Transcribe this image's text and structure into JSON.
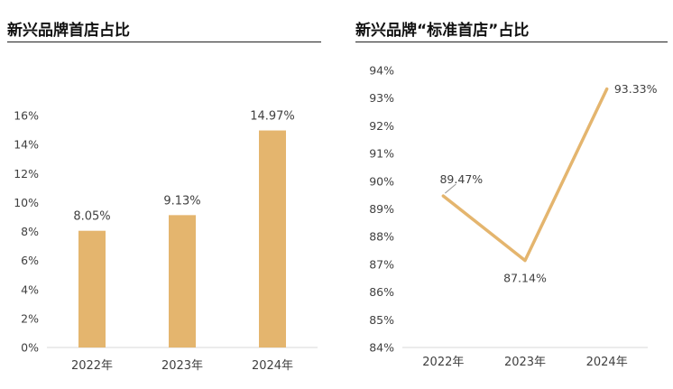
{
  "chart_data": [
    {
      "type": "bar",
      "title": "新兴品牌首店占比",
      "categories": [
        "2022年",
        "2023年",
        "2024年"
      ],
      "values": [
        8.05,
        9.13,
        14.97
      ],
      "value_labels": [
        "8.05%",
        "9.13%",
        "14.97%"
      ],
      "ylim": [
        0,
        16
      ],
      "yticks": [
        0,
        2,
        4,
        6,
        8,
        10,
        12,
        14,
        16
      ],
      "ytick_labels": [
        "0%",
        "2%",
        "4%",
        "6%",
        "8%",
        "10%",
        "12%",
        "14%",
        "16%"
      ],
      "grid": false,
      "color": "#E4B56E"
    },
    {
      "type": "line",
      "title": "新兴品牌“标准首店”占比",
      "categories": [
        "2022年",
        "2023年",
        "2024年"
      ],
      "values": [
        89.47,
        87.14,
        93.33
      ],
      "value_labels": [
        "89.47%",
        "87.14%",
        "93.33%"
      ],
      "ylim": [
        84,
        94
      ],
      "yticks": [
        84,
        85,
        86,
        87,
        88,
        89,
        90,
        91,
        92,
        93,
        94
      ],
      "ytick_labels": [
        "84%",
        "85%",
        "86%",
        "87%",
        "88%",
        "89%",
        "90%",
        "91%",
        "92%",
        "93%",
        "94%"
      ],
      "grid": false,
      "color": "#E4B56E"
    }
  ]
}
